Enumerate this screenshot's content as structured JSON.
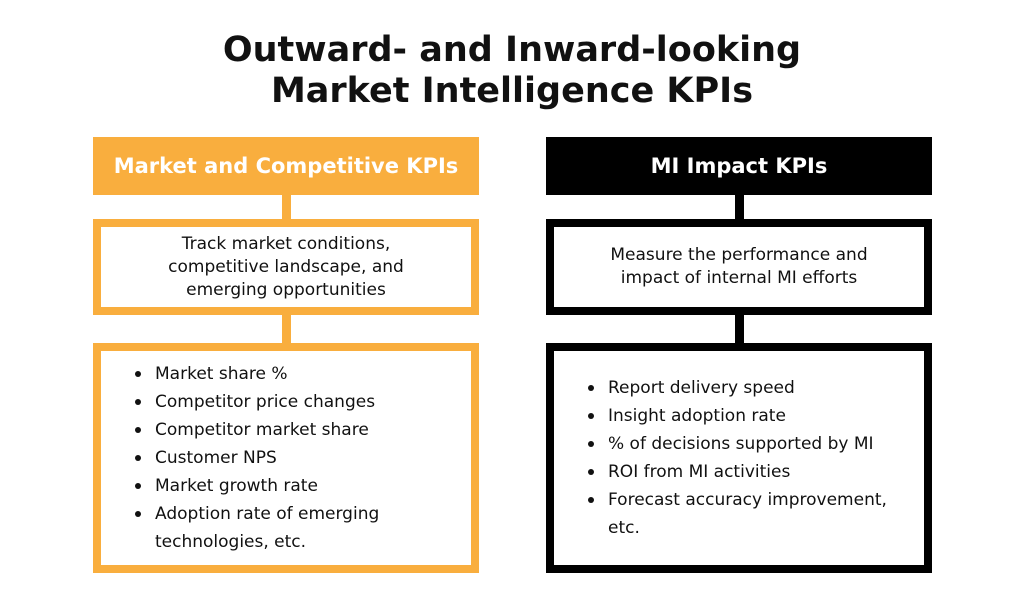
{
  "title": {
    "line1": "Outward- and Inward-looking",
    "line2": "Market Intelligence KPIs"
  },
  "colors": {
    "accent_orange": "#F9AE3E",
    "accent_black": "#000000",
    "text": "#111111"
  },
  "left": {
    "header": "Market and Competitive KPIs",
    "description": "Track market conditions, competitive landscape, and emerging opportunities",
    "items": [
      "Market share %",
      "Competitor price changes",
      "Competitor market share",
      "Customer NPS",
      "Market growth rate",
      "Adoption rate of emerging technologies, etc."
    ]
  },
  "right": {
    "header": "MI Impact KPIs",
    "description": "Measure the performance and impact of internal MI efforts",
    "items": [
      "Report delivery speed",
      "Insight adoption rate",
      "% of decisions supported by MI",
      "ROI from MI activities",
      "Forecast accuracy improvement, etc."
    ]
  }
}
